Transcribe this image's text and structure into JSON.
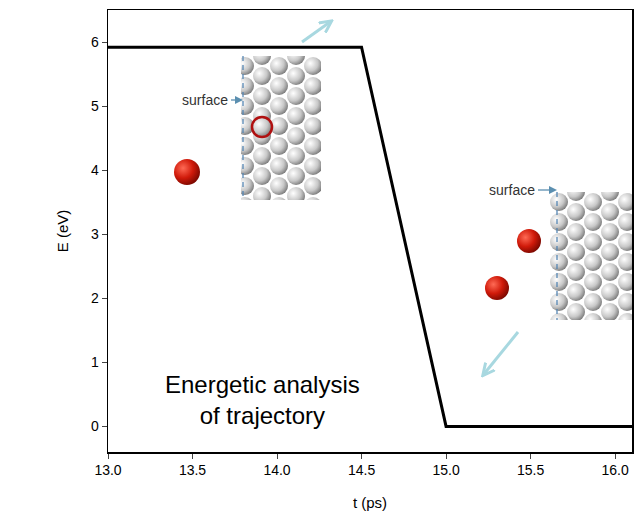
{
  "chart_data": {
    "type": "line",
    "x": [
      13.0,
      14.5,
      15.0,
      16.1
    ],
    "values": [
      5.92,
      5.92,
      0,
      0
    ],
    "color": "#000000",
    "x_label": "t (ps)",
    "y_label": "E (eV)",
    "xlim": [
      13.0,
      16.1
    ],
    "xticks": [
      {
        "value": 13,
        "label": "13.0"
      },
      {
        "value": 13.5,
        "label": "13.5"
      },
      {
        "value": 14,
        "label": "14.0"
      },
      {
        "value": 14.5,
        "label": "14.5"
      },
      {
        "value": 15,
        "label": "15.0"
      },
      {
        "value": 15.5,
        "label": "15.5"
      },
      {
        "value": 16,
        "label": "16.0"
      }
    ],
    "ylim": [
      -0.4,
      6.5
    ],
    "yticks": [
      0,
      1,
      2,
      3,
      4,
      5,
      6
    ],
    "grid": false,
    "annotation": [
      "Energetic analysis",
      "of trajectory"
    ],
    "inset_labels": [
      "surface",
      "surface"
    ]
  }
}
